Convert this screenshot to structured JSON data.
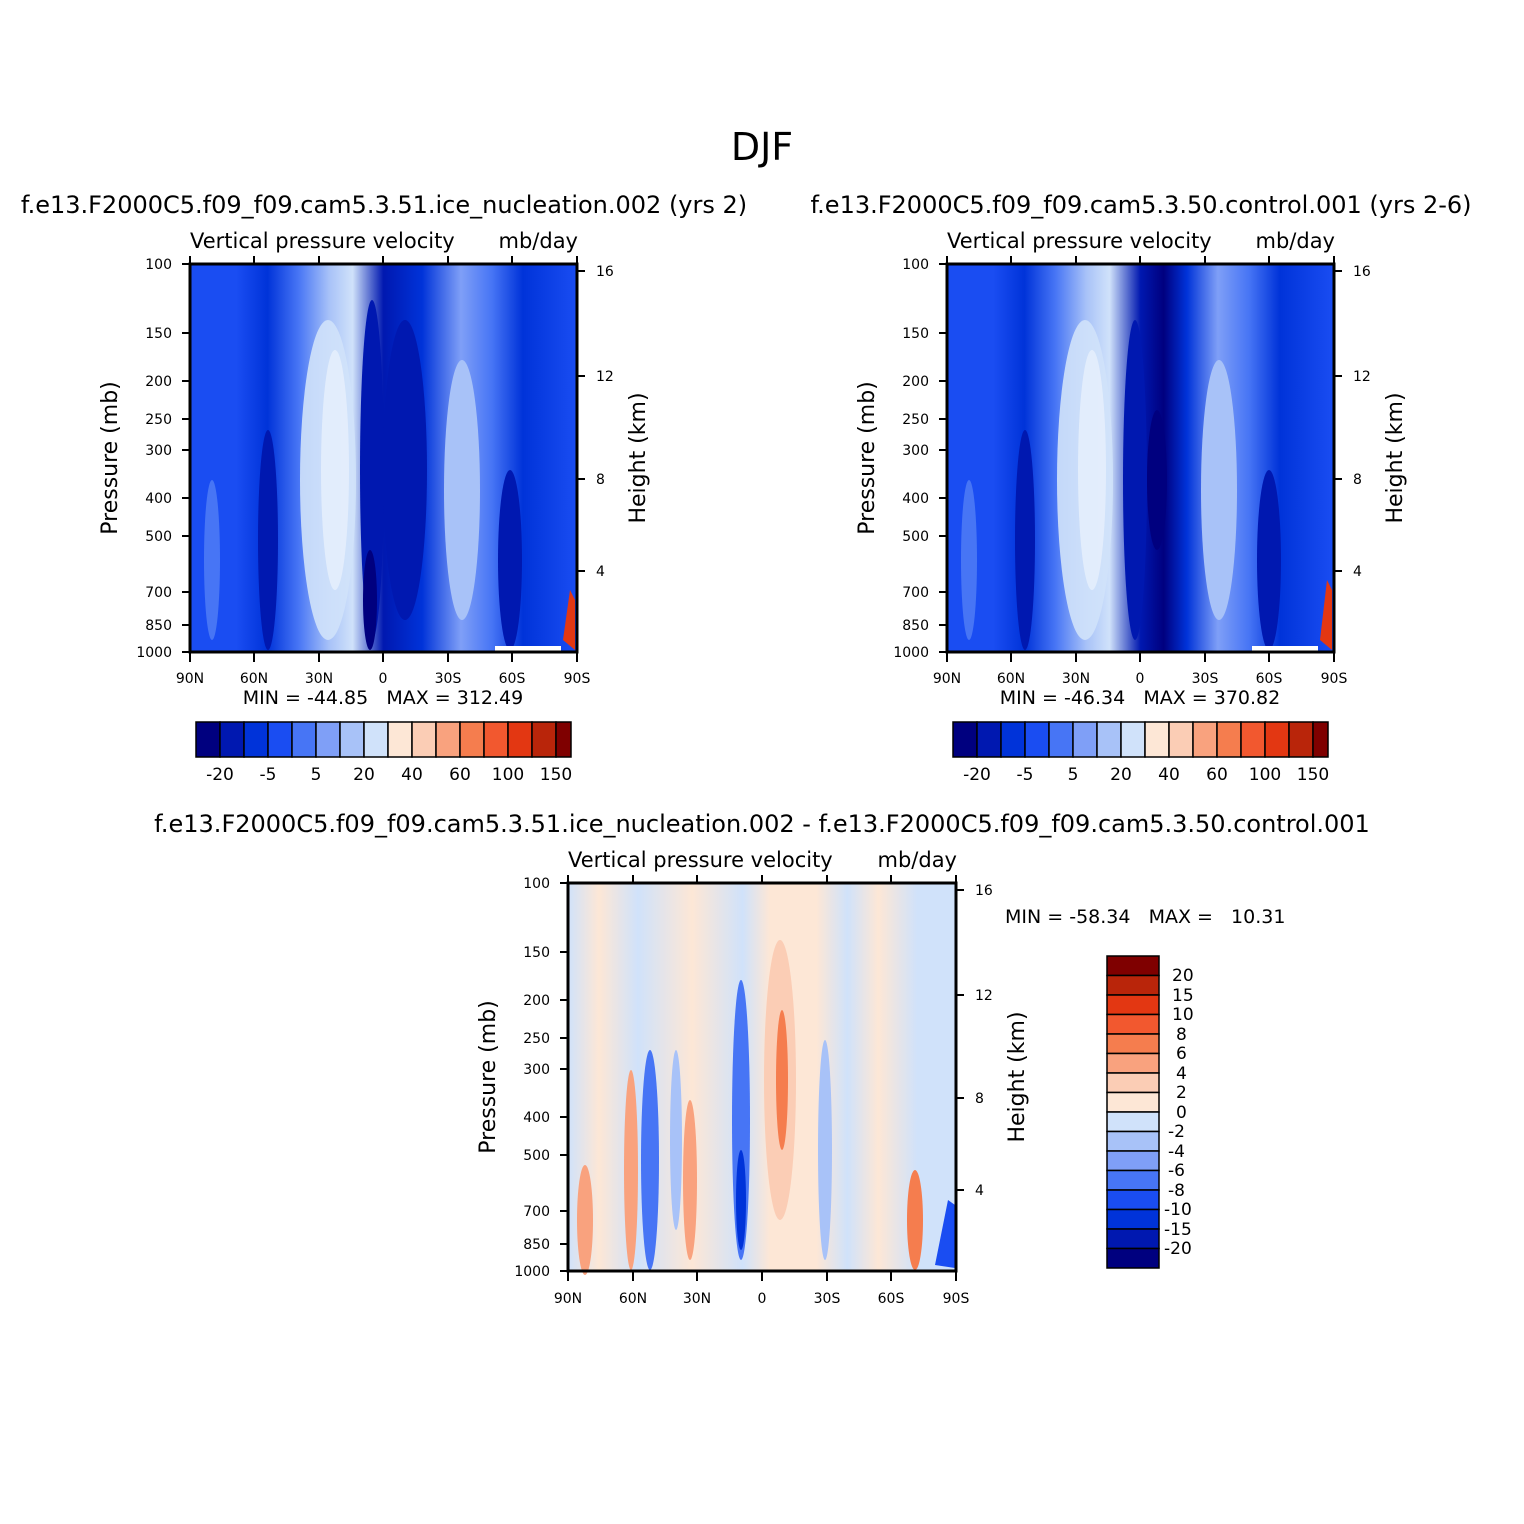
{
  "figure": {
    "title": "DJF"
  },
  "colors": {
    "negative": [
      "#00007f",
      "#0018b0",
      "#0033d9",
      "#1a4df2",
      "#4775f5",
      "#7f9ff7",
      "#a8c2f8",
      "#d0e2fa"
    ],
    "positive": [
      "#fde7d6",
      "#fbcdb5",
      "#f9a27e",
      "#f57d4e",
      "#f2582f",
      "#e33712",
      "#b9250a",
      "#7f0000"
    ]
  },
  "chart_data": [
    {
      "type": "heatmap",
      "case_title": "f.e13.F2000C5.f09_f09.cam5.3.51.ice_nucleation.002 (yrs 2)",
      "var_title": "Vertical pressure velocity",
      "units": "mb/day",
      "xlabel": "",
      "ylabel": "Pressure (mb)",
      "ylabel_right": "Height (km)",
      "x_ticks": [
        "90N",
        "60N",
        "30N",
        "0",
        "30S",
        "60S",
        "90S"
      ],
      "y_ticks": [
        "100",
        "150",
        "200",
        "250",
        "300",
        "400",
        "500",
        "700",
        "850",
        "1000"
      ],
      "y_right_ticks": [
        "16",
        "12",
        "8",
        "4"
      ],
      "stats": "MIN = -44.85   MAX = 312.49",
      "min": -44.85,
      "max": 312.49,
      "colorbar_labels": [
        "-20",
        "-5",
        "5",
        "20",
        "40",
        "60",
        "100",
        "150"
      ]
    },
    {
      "type": "heatmap",
      "case_title": "f.e13.F2000C5.f09_f09.cam5.3.50.control.001 (yrs 2-6)",
      "var_title": "Vertical pressure velocity",
      "units": "mb/day",
      "xlabel": "",
      "ylabel": "Pressure (mb)",
      "ylabel_right": "Height (km)",
      "x_ticks": [
        "90N",
        "60N",
        "30N",
        "0",
        "30S",
        "60S",
        "90S"
      ],
      "y_ticks": [
        "100",
        "150",
        "200",
        "250",
        "300",
        "400",
        "500",
        "700",
        "850",
        "1000"
      ],
      "y_right_ticks": [
        "16",
        "12",
        "8",
        "4"
      ],
      "stats": "MIN = -46.34   MAX = 370.82",
      "min": -46.34,
      "max": 370.82,
      "colorbar_labels": [
        "-20",
        "-5",
        "5",
        "20",
        "40",
        "60",
        "100",
        "150"
      ]
    },
    {
      "type": "heatmap",
      "case_title": "f.e13.F2000C5.f09_f09.cam5.3.51.ice_nucleation.002 - f.e13.F2000C5.f09_f09.cam5.3.50.control.001",
      "var_title": "Vertical pressure velocity",
      "units": "mb/day",
      "xlabel": "",
      "ylabel": "Pressure (mb)",
      "ylabel_right": "Height (km)",
      "x_ticks": [
        "90N",
        "60N",
        "30N",
        "0",
        "30S",
        "60S",
        "90S"
      ],
      "y_ticks": [
        "100",
        "150",
        "200",
        "250",
        "300",
        "400",
        "500",
        "700",
        "850",
        "1000"
      ],
      "y_right_ticks": [
        "16",
        "12",
        "8",
        "4"
      ],
      "stats": "MIN = -58.34   MAX =   10.31",
      "min": -58.34,
      "max": 10.31,
      "colorbar_labels": [
        "20",
        "15",
        "10",
        "8",
        "6",
        "4",
        "2",
        "0",
        "-2",
        "-4",
        "-6",
        "-8",
        "-10",
        "-15",
        "-20"
      ]
    }
  ]
}
